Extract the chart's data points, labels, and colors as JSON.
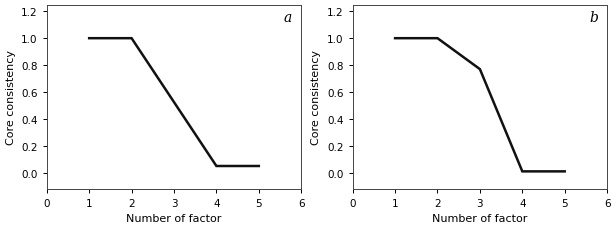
{
  "plot_a": {
    "x": [
      1,
      2,
      4,
      5
    ],
    "y": [
      1.0,
      1.0,
      0.05,
      0.05
    ],
    "label": "a",
    "xlabel": "Number of factor",
    "ylabel": "Core consistency"
  },
  "plot_b": {
    "x": [
      1,
      2,
      3,
      4,
      5
    ],
    "y": [
      1.0,
      1.0,
      0.77,
      0.01,
      0.01
    ],
    "label": "b",
    "xlabel": "Number of factor",
    "ylabel": "Core consistency"
  },
  "xlim": [
    0,
    6
  ],
  "ylim": [
    -0.12,
    1.25
  ],
  "xticks": [
    0,
    1,
    2,
    3,
    4,
    5,
    6
  ],
  "xticklabels": [
    "0",
    "1",
    "2",
    "3",
    "4",
    "5",
    "6"
  ],
  "yticks": [
    0.0,
    0.2,
    0.4,
    0.6,
    0.8,
    1.0,
    1.2
  ],
  "yticklabels": [
    "0.0",
    "0.2",
    "0.4",
    "0.6",
    "0.8",
    "1.0",
    "1.2"
  ],
  "line_color": "#111111",
  "line_width": 1.8,
  "bg_color": "#ffffff",
  "font_size_label": 8,
  "font_size_tick": 7.5,
  "font_size_letter": 10
}
